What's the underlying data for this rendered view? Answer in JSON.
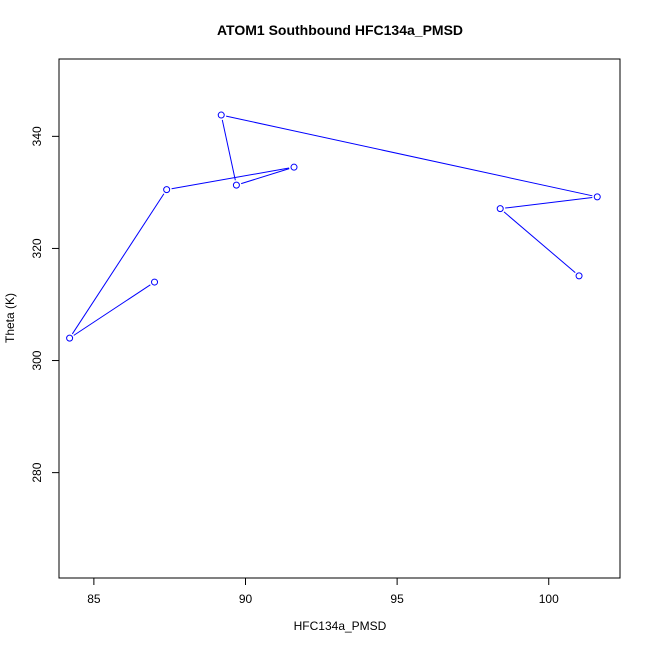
{
  "chart_data": {
    "type": "line",
    "title": "ATOM1 Southbound HFC134a_PMSD",
    "xlabel": "HFC134a_PMSD",
    "ylabel": "Theta (K)",
    "xlim": [
      83.85,
      102.35
    ],
    "ylim": [
      261.2,
      353.8
    ],
    "xticks": [
      85,
      90,
      95,
      100
    ],
    "yticks": [
      280,
      300,
      320,
      340
    ],
    "xtick_labels": [
      "85",
      "90",
      "95",
      "100"
    ],
    "ytick_labels": [
      "280",
      "300",
      "320",
      "340"
    ],
    "series_color": "#0000ff",
    "grid": false,
    "legend": "none",
    "markers": "open-circle",
    "points": [
      {
        "x": 87.0,
        "y": 314.0
      },
      {
        "x": 84.2,
        "y": 304.0
      },
      {
        "x": 87.4,
        "y": 330.5
      },
      {
        "x": 91.6,
        "y": 334.5
      },
      {
        "x": 89.7,
        "y": 331.3
      },
      {
        "x": 89.2,
        "y": 343.8
      },
      {
        "x": 101.6,
        "y": 329.2
      },
      {
        "x": 98.4,
        "y": 327.1
      },
      {
        "x": 101.0,
        "y": 315.1
      }
    ]
  }
}
